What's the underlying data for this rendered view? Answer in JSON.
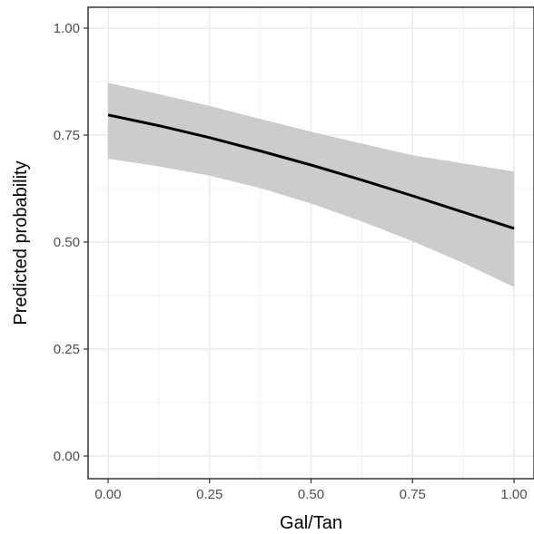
{
  "chart_data": {
    "type": "line",
    "xlabel": "Gal/Tan",
    "ylabel": "Predicted probability",
    "xlim": [
      0,
      1
    ],
    "ylim": [
      0,
      1
    ],
    "x_ticks": [
      0,
      0.25,
      0.5,
      0.75,
      1
    ],
    "x_tick_labels": [
      "0.00",
      "0.25",
      "0.50",
      "0.75",
      "1.00"
    ],
    "y_ticks": [
      0,
      0.25,
      0.5,
      0.75,
      1
    ],
    "y_tick_labels": [
      "0.00",
      "0.25",
      "0.50",
      "0.75",
      "1.00"
    ],
    "grid": true,
    "series": [
      {
        "x": [
          0,
          0.125,
          0.25,
          0.375,
          0.5,
          0.625,
          0.75,
          0.875,
          1
        ],
        "y": [
          0.797,
          0.772,
          0.744,
          0.713,
          0.68,
          0.645,
          0.608,
          0.57,
          0.532
        ],
        "ci_lower": [
          0.695,
          0.677,
          0.655,
          0.626,
          0.59,
          0.548,
          0.502,
          0.451,
          0.395
        ],
        "ci_upper": [
          0.872,
          0.846,
          0.818,
          0.788,
          0.758,
          0.73,
          0.703,
          0.684,
          0.665
        ]
      }
    ],
    "colors": {
      "line": "#000000",
      "band": "#cccccc",
      "grid": "#ebebeb",
      "border": "#333333"
    }
  }
}
